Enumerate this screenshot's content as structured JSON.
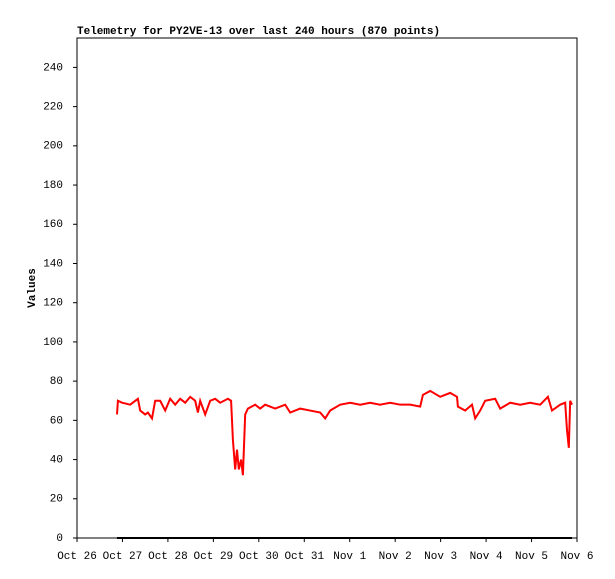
{
  "chart_data": {
    "type": "line",
    "title": "Telemetry for PY2VE-13 over last 240 hours (870 points)",
    "y_label": "Values",
    "xlim": [
      0,
      11
    ],
    "xticks": [
      {
        "value": 0,
        "label": "Oct 26"
      },
      {
        "value": 1,
        "label": "Oct 27"
      },
      {
        "value": 2,
        "label": "Oct 28"
      },
      {
        "value": 3,
        "label": "Oct 29"
      },
      {
        "value": 4,
        "label": "Oct 30"
      },
      {
        "value": 5,
        "label": "Oct 31"
      },
      {
        "value": 6,
        "label": "Nov 1"
      },
      {
        "value": 7,
        "label": "Nov 2"
      },
      {
        "value": 8,
        "label": "Nov 3"
      },
      {
        "value": 9,
        "label": "Nov 4"
      },
      {
        "value": 10,
        "label": "Nov 5"
      },
      {
        "value": 11,
        "label": "Nov 6"
      }
    ],
    "ylim": [
      0,
      255
    ],
    "yticks": [
      0,
      20,
      40,
      60,
      80,
      100,
      120,
      140,
      160,
      180,
      200,
      220,
      240
    ],
    "series": [
      {
        "color": "#ff0000",
        "x": [
          0.88,
          0.9,
          0.99,
          1.17,
          1.34,
          1.39,
          1.5,
          1.56,
          1.65,
          1.72,
          1.83,
          1.94,
          2.05,
          2.16,
          2.27,
          2.38,
          2.49,
          2.6,
          2.66,
          2.71,
          2.82,
          2.93,
          3.04,
          3.15,
          3.32,
          3.39,
          3.43,
          3.48,
          3.52,
          3.56,
          3.61,
          3.65,
          3.7,
          3.76,
          3.92,
          4.03,
          4.14,
          4.36,
          4.58,
          4.69,
          4.91,
          5.13,
          5.35,
          5.46,
          5.57,
          5.79,
          6.01,
          6.23,
          6.45,
          6.67,
          6.89,
          7.11,
          7.33,
          7.55,
          7.61,
          7.77,
          7.99,
          8.21,
          8.36,
          8.38,
          8.54,
          8.69,
          8.76,
          8.87,
          8.98,
          9.2,
          9.31,
          9.53,
          9.75,
          9.97,
          10.19,
          10.36,
          10.45,
          10.63,
          10.74,
          10.78,
          10.82,
          10.85,
          10.89
        ],
        "values": [
          63,
          70,
          69,
          68,
          71,
          65,
          63,
          64,
          61,
          70,
          70,
          65,
          71,
          68,
          71,
          69,
          72,
          70,
          64,
          70,
          63,
          70,
          71,
          69,
          71,
          70,
          50,
          35,
          45,
          35,
          40,
          32,
          63,
          66,
          68,
          66,
          68,
          66,
          68,
          64,
          66,
          65,
          64,
          61,
          65,
          68,
          69,
          68,
          69,
          68,
          69,
          68,
          68,
          67,
          73,
          75,
          72,
          74,
          72,
          67,
          65,
          68,
          61,
          65,
          70,
          71,
          66,
          69,
          68,
          69,
          68,
          72,
          65,
          68,
          69,
          55,
          46,
          70,
          68
        ]
      },
      {
        "color": "#000000",
        "x": [
          0.88,
          10.89
        ],
        "values": [
          0,
          0
        ]
      }
    ]
  }
}
